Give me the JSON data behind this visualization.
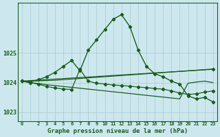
{
  "title": "Graphe pression niveau de la mer (hPa)",
  "bg_color": "#cce8ee",
  "grid_color": "#b0cdd4",
  "line_color": "#1a5c1a",
  "xlim": [
    -0.5,
    23.5
  ],
  "ylim": [
    1022.7,
    1026.7
  ],
  "yticks": [
    1023,
    1024,
    1025
  ],
  "xtick_labels": [
    "0",
    "",
    "2",
    "3",
    "4",
    "5",
    "6",
    "7",
    "8",
    "9",
    "10",
    "11",
    "12",
    "13",
    "14",
    "15",
    "16",
    "17",
    "18",
    "19",
    "20",
    "21",
    "22",
    "23"
  ],
  "series": [
    {
      "x": [
        0,
        1,
        2,
        3,
        4,
        5,
        6,
        7,
        8,
        9,
        10,
        11,
        12,
        13,
        14,
        15,
        16,
        17,
        18,
        19,
        20,
        21,
        22,
        23
      ],
      "y": [
        1024.05,
        1024.02,
        1024.1,
        1024.2,
        1024.35,
        1024.55,
        1024.75,
        1024.4,
        1025.1,
        1025.45,
        1025.8,
        1026.15,
        1026.3,
        1025.9,
        1025.1,
        1024.55,
        1024.3,
        1024.2,
        1024.05,
        1023.95,
        1023.55,
        1023.45,
        1023.5,
        1023.35
      ],
      "marker": true,
      "lw": 1.0
    },
    {
      "x": [
        0,
        23
      ],
      "y": [
        1024.05,
        1024.45
      ],
      "marker": true,
      "lw": 0.9
    },
    {
      "x": [
        0,
        1,
        2,
        3,
        4,
        5,
        6,
        7,
        8,
        9,
        10,
        11,
        12,
        13,
        14,
        15,
        16,
        17,
        18,
        19,
        20,
        21,
        22,
        23
      ],
      "y": [
        1024.05,
        1024.0,
        1023.95,
        1023.87,
        1023.82,
        1023.78,
        1023.77,
        1024.45,
        1024.05,
        1023.98,
        1023.95,
        1023.92,
        1023.9,
        1023.88,
        1023.85,
        1023.83,
        1023.8,
        1023.78,
        1023.72,
        1023.65,
        1023.6,
        1023.62,
        1023.68,
        1023.72
      ],
      "marker": true,
      "lw": 0.9
    },
    {
      "x": [
        0,
        1,
        2,
        3,
        4,
        5,
        6,
        7,
        8,
        9,
        10,
        11,
        12,
        13,
        14,
        15,
        16,
        17,
        18,
        19,
        20,
        21,
        22,
        23
      ],
      "y": [
        1024.05,
        1024.0,
        1023.97,
        1023.93,
        1023.9,
        1023.87,
        1023.84,
        1023.81,
        1023.78,
        1023.75,
        1023.72,
        1023.69,
        1023.66,
        1023.63,
        1023.6,
        1023.57,
        1023.54,
        1023.51,
        1023.48,
        1023.45,
        1023.98,
        1024.02,
        1024.05,
        1024.0
      ],
      "marker": false,
      "lw": 0.9
    },
    {
      "x": [
        0,
        1,
        2,
        3,
        4,
        5,
        6,
        7,
        8,
        9,
        10,
        11,
        12,
        13,
        14,
        15,
        16,
        17,
        18,
        19,
        20,
        21,
        22,
        23
      ],
      "y": [
        1024.05,
        1024.05,
        1024.06,
        1024.07,
        1024.08,
        1024.1,
        1024.12,
        1024.14,
        1024.16,
        1024.18,
        1024.2,
        1024.22,
        1024.24,
        1024.26,
        1024.28,
        1024.3,
        1024.32,
        1024.34,
        1024.36,
        1024.38,
        1024.4,
        1024.42,
        1024.44,
        1024.46
      ],
      "marker": false,
      "lw": 0.9
    }
  ]
}
